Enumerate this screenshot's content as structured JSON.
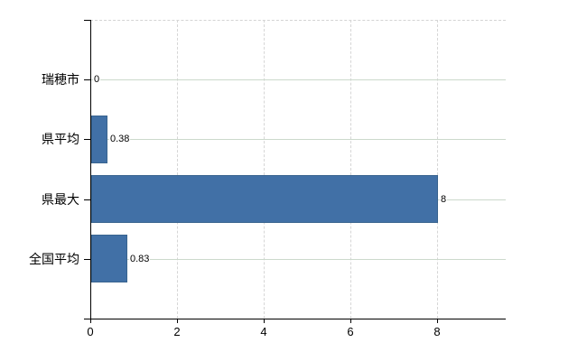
{
  "chart_data": {
    "type": "bar",
    "orientation": "horizontal",
    "title": "",
    "categories": [
      "瑞穂市",
      "県平均",
      "県最大",
      "全国平均"
    ],
    "values": [
      0,
      0.38,
      8,
      0.83
    ],
    "value_labels": [
      "0",
      "0.38",
      "8",
      "0.83"
    ],
    "xtick_values": [
      0,
      2,
      4,
      6,
      8
    ],
    "xtick_labels": [
      "0",
      "2",
      "4",
      "6",
      "8"
    ],
    "xlim": [
      0,
      9.6
    ],
    "grid": "on",
    "legend": "none",
    "colors": {
      "bar_fill": "#4170a6",
      "bar_border": "#39648f",
      "h_gridline": "#ccd9cc",
      "v_gridline": "#d6d6d6",
      "axis": "#000000",
      "text": "#000000",
      "background": "#ffffff"
    }
  }
}
